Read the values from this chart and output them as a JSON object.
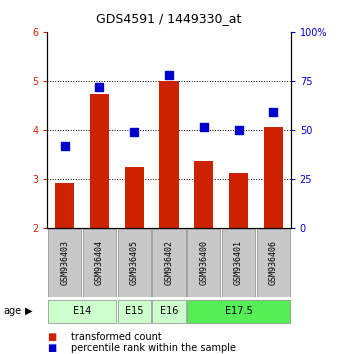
{
  "title": "GDS4591 / 1449330_at",
  "samples": [
    "GSM936403",
    "GSM936404",
    "GSM936405",
    "GSM936402",
    "GSM936400",
    "GSM936401",
    "GSM936406"
  ],
  "bar_values": [
    2.93,
    4.73,
    3.25,
    5.0,
    3.38,
    3.12,
    4.07
  ],
  "dot_values": [
    3.67,
    4.87,
    3.97,
    5.13,
    4.07,
    4.0,
    4.37
  ],
  "bar_color": "#cc2200",
  "dot_color": "#0000cc",
  "ymin": 2.0,
  "ymax": 6.0,
  "yticks_left": [
    2,
    3,
    4,
    5,
    6
  ],
  "yticks_right": [
    0,
    25,
    50,
    75,
    100
  ],
  "ytick_labels_right": [
    "0",
    "25",
    "50",
    "75",
    "100%"
  ],
  "age_groups": [
    {
      "label": "E14",
      "samples": [
        "GSM936403",
        "GSM936404"
      ],
      "color": "#ccffcc"
    },
    {
      "label": "E15",
      "samples": [
        "GSM936405"
      ],
      "color": "#ccffcc"
    },
    {
      "label": "E16",
      "samples": [
        "GSM936402"
      ],
      "color": "#ccffcc"
    },
    {
      "label": "E17.5",
      "samples": [
        "GSM936400",
        "GSM936401",
        "GSM936406"
      ],
      "color": "#55ee55"
    }
  ],
  "bar_width": 0.55,
  "dot_size": 30,
  "legend_bar_label": "transformed count",
  "legend_dot_label": "percentile rank within the sample",
  "age_label": "age",
  "ytick_color_left": "#cc2200",
  "ytick_color_right": "#0000cc",
  "grid_lines": [
    3,
    4,
    5
  ],
  "sample_box_color": "#c8c8c8",
  "title_fontsize": 9,
  "tick_fontsize": 7,
  "sample_fontsize": 6,
  "age_fontsize": 7,
  "legend_fontsize": 7
}
